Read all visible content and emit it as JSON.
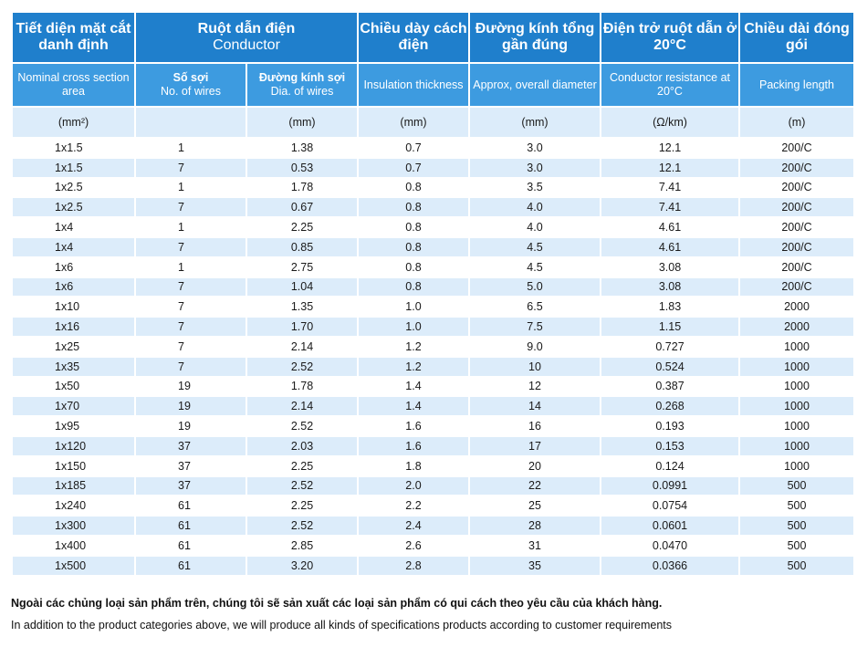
{
  "header": {
    "cross_section_vn": "Tiết diện mặt cắt danh định",
    "conductor_vn": "Ruột dẫn điện",
    "conductor_en": "Conductor",
    "insulation_vn": "Chiều dày cách điện",
    "diameter_vn": "Đường kính tổng gần đúng",
    "resistance_vn": "Điện trở ruột dẫn ở 20°C",
    "packing_vn": "Chiều dài đóng gói"
  },
  "subheader": {
    "cross_section_en": "Nominal cross section area",
    "wires_vn": "Số sợi",
    "wires_en": "No. of wires",
    "wire_dia_vn": "Đường kính sợi",
    "wire_dia_en": "Dia. of wires",
    "insulation_en": "Insulation thickness",
    "diameter_en": "Approx, overall diameter",
    "resistance_en": "Conductor resistance at 20°C",
    "packing_en": "Packing length"
  },
  "units": {
    "cross_section": "(mm²)",
    "wires": "",
    "wire_dia": "(mm)",
    "insulation": "(mm)",
    "diameter": "(mm)",
    "resistance": "(Ω/km)",
    "packing": "(m)"
  },
  "rows": [
    [
      "1x1.5",
      "1",
      "1.38",
      "0.7",
      "3.0",
      "12.1",
      "200/C"
    ],
    [
      "1x1.5",
      "7",
      "0.53",
      "0.7",
      "3.0",
      "12.1",
      "200/C"
    ],
    [
      "1x2.5",
      "1",
      "1.78",
      "0.8",
      "3.5",
      "7.41",
      "200/C"
    ],
    [
      "1x2.5",
      "7",
      "0.67",
      "0.8",
      "4.0",
      "7.41",
      "200/C"
    ],
    [
      "1x4",
      "1",
      "2.25",
      "0.8",
      "4.0",
      "4.61",
      "200/C"
    ],
    [
      "1x4",
      "7",
      "0.85",
      "0.8",
      "4.5",
      "4.61",
      "200/C"
    ],
    [
      "1x6",
      "1",
      "2.75",
      "0.8",
      "4.5",
      "3.08",
      "200/C"
    ],
    [
      "1x6",
      "7",
      "1.04",
      "0.8",
      "5.0",
      "3.08",
      "200/C"
    ],
    [
      "1x10",
      "7",
      "1.35",
      "1.0",
      "6.5",
      "1.83",
      "2000"
    ],
    [
      "1x16",
      "7",
      "1.70",
      "1.0",
      "7.5",
      "1.15",
      "2000"
    ],
    [
      "1x25",
      "7",
      "2.14",
      "1.2",
      "9.0",
      "0.727",
      "1000"
    ],
    [
      "1x35",
      "7",
      "2.52",
      "1.2",
      "10",
      "0.524",
      "1000"
    ],
    [
      "1x50",
      "19",
      "1.78",
      "1.4",
      "12",
      "0.387",
      "1000"
    ],
    [
      "1x70",
      "19",
      "2.14",
      "1.4",
      "14",
      "0.268",
      "1000"
    ],
    [
      "1x95",
      "19",
      "2.52",
      "1.6",
      "16",
      "0.193",
      "1000"
    ],
    [
      "1x120",
      "37",
      "2.03",
      "1.6",
      "17",
      "0.153",
      "1000"
    ],
    [
      "1x150",
      "37",
      "2.25",
      "1.8",
      "20",
      "0.124",
      "1000"
    ],
    [
      "1x185",
      "37",
      "2.52",
      "2.0",
      "22",
      "0.0991",
      "500"
    ],
    [
      "1x240",
      "61",
      "2.25",
      "2.2",
      "25",
      "0.0754",
      "500"
    ],
    [
      "1x300",
      "61",
      "2.52",
      "2.4",
      "28",
      "0.0601",
      "500"
    ],
    [
      "1x400",
      "61",
      "2.85",
      "2.6",
      "31",
      "0.0470",
      "500"
    ],
    [
      "1x500",
      "61",
      "3.20",
      "2.8",
      "35",
      "0.0366",
      "500"
    ]
  ],
  "footer": {
    "note_vn": "Ngoài các chủng loại sản phẩm trên, chúng tôi sẽ sản xuất các loại sản phẩm có qui cách theo yêu cầu của khách hàng.",
    "note_en": "In addition to the product categories above, we will produce all kinds of specifications products according to customer requirements"
  },
  "colors": {
    "header_dark_blue": "#1f7fcc",
    "header_mid_blue": "#3d9be0",
    "row_light_blue": "#dcecfa"
  }
}
